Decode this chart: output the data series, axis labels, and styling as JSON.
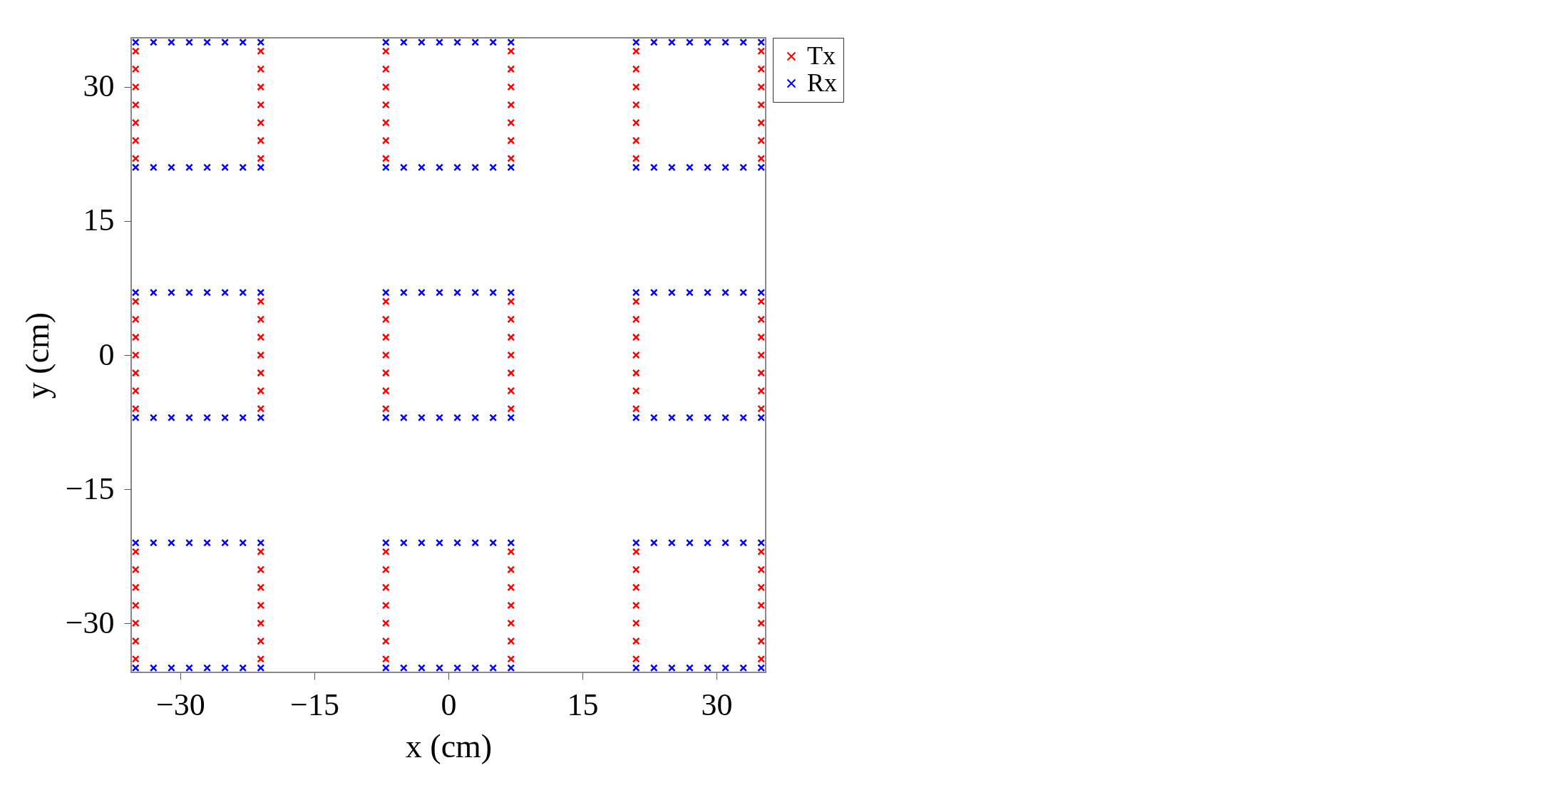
{
  "chart_data": [
    {
      "type": "scatter",
      "xlabel": "x (cm)",
      "ylabel": "y (cm)",
      "xlim": [
        -35.5,
        35.5
      ],
      "ylim": [
        -35.5,
        35.5
      ],
      "xticks": [
        -30,
        -15,
        0,
        15,
        30
      ],
      "yticks": [
        -30,
        -15,
        0,
        15,
        30
      ],
      "grid": false,
      "legend": "right",
      "marker": "cross",
      "series": [
        {
          "name": "Tx",
          "color": "#ff0000",
          "x": [
            -35,
            -35,
            -35,
            -35,
            -35,
            -35,
            -35,
            -35,
            -35,
            -35,
            -35,
            -35,
            -35,
            -35,
            -35,
            -35,
            -35,
            -35,
            -35,
            -35,
            -35,
            -21,
            -21,
            -21,
            -21,
            -21,
            -21,
            -21,
            -21,
            -21,
            -21,
            -21,
            -21,
            -21,
            -21,
            -21,
            -21,
            -21,
            -21,
            -21,
            -21,
            -21,
            -7,
            -7,
            -7,
            -7,
            -7,
            -7,
            -7,
            -7,
            -7,
            -7,
            -7,
            -7,
            -7,
            -7,
            -7,
            -7,
            -7,
            -7,
            -7,
            -7,
            -7,
            7,
            7,
            7,
            7,
            7,
            7,
            7,
            7,
            7,
            7,
            7,
            7,
            7,
            7,
            7,
            7,
            7,
            7,
            7,
            7,
            7,
            21,
            21,
            21,
            21,
            21,
            21,
            21,
            21,
            21,
            21,
            21,
            21,
            21,
            21,
            21,
            21,
            21,
            21,
            21,
            21,
            21,
            35,
            35,
            35,
            35,
            35,
            35,
            35,
            35,
            35,
            35,
            35,
            35,
            35,
            35,
            35,
            35,
            35,
            35,
            35,
            35,
            35
          ],
          "values": [
            -34,
            -32,
            -30,
            -28,
            -26,
            -24,
            -22,
            -6,
            -4,
            -2,
            0,
            2,
            4,
            6,
            22,
            24,
            26,
            28,
            30,
            32,
            34,
            -34,
            -32,
            -30,
            -28,
            -26,
            -24,
            -22,
            -6,
            -4,
            -2,
            0,
            2,
            4,
            6,
            22,
            24,
            26,
            28,
            30,
            32,
            34,
            -34,
            -32,
            -30,
            -28,
            -26,
            -24,
            -22,
            -6,
            -4,
            -2,
            0,
            2,
            4,
            6,
            22,
            24,
            26,
            28,
            30,
            32,
            34,
            -34,
            -32,
            -30,
            -28,
            -26,
            -24,
            -22,
            -6,
            -4,
            -2,
            0,
            2,
            4,
            6,
            22,
            24,
            26,
            28,
            30,
            32,
            34,
            -34,
            -32,
            -30,
            -28,
            -26,
            -24,
            -22,
            -6,
            -4,
            -2,
            0,
            2,
            4,
            6,
            22,
            24,
            26,
            28,
            30,
            32,
            34,
            -34,
            -32,
            -30,
            -28,
            -26,
            -24,
            -22,
            -6,
            -4,
            -2,
            0,
            2,
            4,
            6,
            22,
            24,
            26,
            28,
            30,
            32,
            34
          ]
        },
        {
          "name": "Rx",
          "color": "#0000ff",
          "x": [
            -35,
            -33,
            -31,
            -29,
            -27,
            -25,
            -23,
            -21,
            -7,
            -5,
            -3,
            -1,
            1,
            3,
            5,
            7,
            21,
            23,
            25,
            27,
            29,
            31,
            33,
            35,
            -35,
            -33,
            -31,
            -29,
            -27,
            -25,
            -23,
            -21,
            -7,
            -5,
            -3,
            -1,
            1,
            3,
            5,
            7,
            21,
            23,
            25,
            27,
            29,
            31,
            33,
            35,
            -35,
            -33,
            -31,
            -29,
            -27,
            -25,
            -23,
            -21,
            -7,
            -5,
            -3,
            -1,
            1,
            3,
            5,
            7,
            21,
            23,
            25,
            27,
            29,
            31,
            33,
            35,
            -35,
            -33,
            -31,
            -29,
            -27,
            -25,
            -23,
            -21,
            -7,
            -5,
            -3,
            -1,
            1,
            3,
            5,
            7,
            21,
            23,
            25,
            27,
            29,
            31,
            33,
            35,
            -35,
            -33,
            -31,
            -29,
            -27,
            -25,
            -23,
            -21,
            -7,
            -5,
            -3,
            -1,
            1,
            3,
            5,
            7,
            21,
            23,
            25,
            27,
            29,
            31,
            33,
            35,
            -35,
            -33,
            -31,
            -29,
            -27,
            -25,
            -23,
            -21,
            -7,
            -5,
            -3,
            -1,
            1,
            3,
            5,
            7,
            21,
            23,
            25,
            27,
            29,
            31,
            33,
            35
          ],
          "values": [
            -35,
            -35,
            -35,
            -35,
            -35,
            -35,
            -35,
            -35,
            -35,
            -35,
            -35,
            -35,
            -35,
            -35,
            -35,
            -35,
            -35,
            -35,
            -35,
            -35,
            -35,
            -35,
            -35,
            -35,
            -21,
            -21,
            -21,
            -21,
            -21,
            -21,
            -21,
            -21,
            -21,
            -21,
            -21,
            -21,
            -21,
            -21,
            -21,
            -21,
            -21,
            -21,
            -21,
            -21,
            -21,
            -21,
            -21,
            -21,
            -7,
            -7,
            -7,
            -7,
            -7,
            -7,
            -7,
            -7,
            -7,
            -7,
            -7,
            -7,
            -7,
            -7,
            -7,
            -7,
            -7,
            -7,
            -7,
            -7,
            -7,
            -7,
            -7,
            -7,
            7,
            7,
            7,
            7,
            7,
            7,
            7,
            7,
            7,
            7,
            7,
            7,
            7,
            7,
            7,
            7,
            7,
            7,
            7,
            7,
            7,
            7,
            7,
            7,
            21,
            21,
            21,
            21,
            21,
            21,
            21,
            21,
            21,
            21,
            21,
            21,
            21,
            21,
            21,
            21,
            21,
            21,
            21,
            21,
            21,
            21,
            21,
            21,
            35,
            35,
            35,
            35,
            35,
            35,
            35,
            35,
            35,
            35,
            35,
            35,
            35,
            35,
            35,
            35,
            35,
            35,
            35,
            35,
            35,
            35,
            35,
            35
          ]
        }
      ]
    }
  ]
}
